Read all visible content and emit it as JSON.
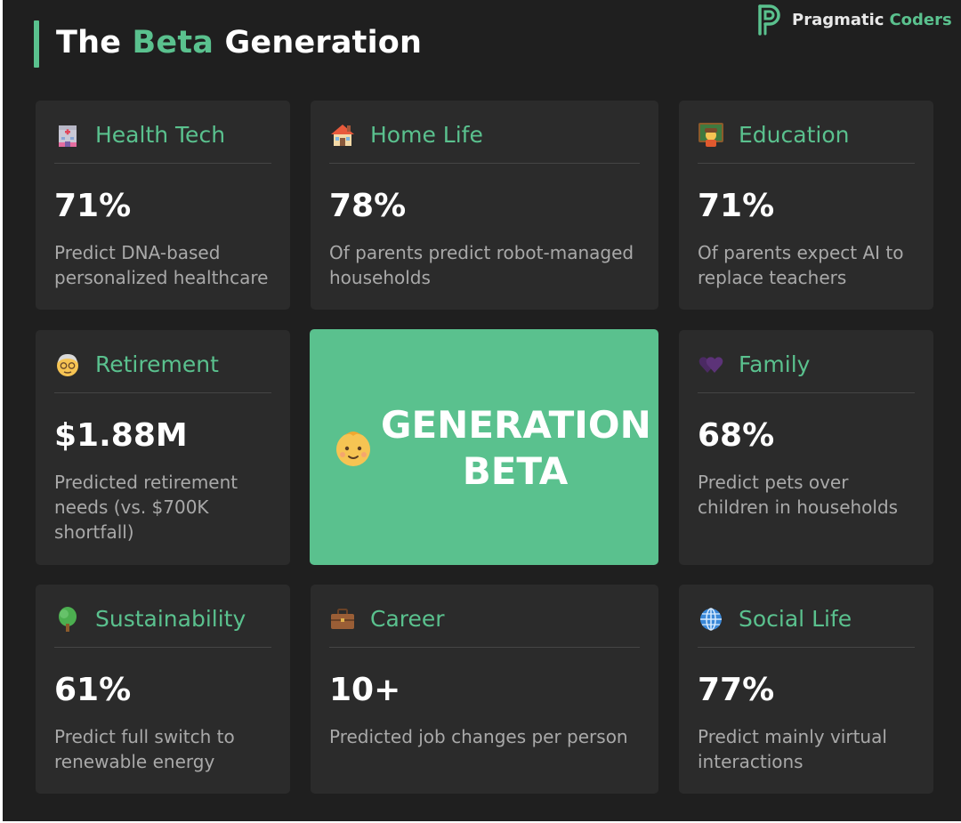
{
  "header": {
    "title_prefix": "The ",
    "title_accent": "Beta",
    "title_suffix": " Generation"
  },
  "brand": {
    "name": "Pragmatic",
    "accent": "Coders",
    "logo_icon": "pragmatic-coders-logo"
  },
  "colors": {
    "background": "#1f1f1f",
    "card": "#2b2b2b",
    "accent": "#5ac18e",
    "text": "#ffffff",
    "muted": "#a9a9a9"
  },
  "hero": {
    "line1": "GENERATION",
    "line2": "BETA",
    "icon": "baby-icon"
  },
  "cards": [
    {
      "title": "Health Tech",
      "value": "71%",
      "description": "Predict DNA-based personalized healthcare",
      "icon": "hospital-icon"
    },
    {
      "title": "Home Life",
      "value": "78%",
      "description": "Of parents predict robot-managed households",
      "icon": "house-icon"
    },
    {
      "title": "Education",
      "value": "71%",
      "description": "Of parents expect AI to replace teachers",
      "icon": "teacher-icon"
    },
    {
      "title": "Retirement",
      "value": "$1.88M",
      "description": "Predicted retirement needs (vs. $700K shortfall)",
      "icon": "older-person-icon"
    },
    {
      "title": "Family",
      "value": "68%",
      "description": "Predict pets over children in households",
      "icon": "hearts-icon"
    },
    {
      "title": "Sustainability",
      "value": "61%",
      "description": "Predict full switch to renewable energy",
      "icon": "tree-icon"
    },
    {
      "title": "Career",
      "value": "10+",
      "description": "Predicted job changes per person",
      "icon": "briefcase-icon"
    },
    {
      "title": "Social Life",
      "value": "77%",
      "description": "Predict mainly virtual interactions",
      "icon": "globe-icon"
    }
  ]
}
